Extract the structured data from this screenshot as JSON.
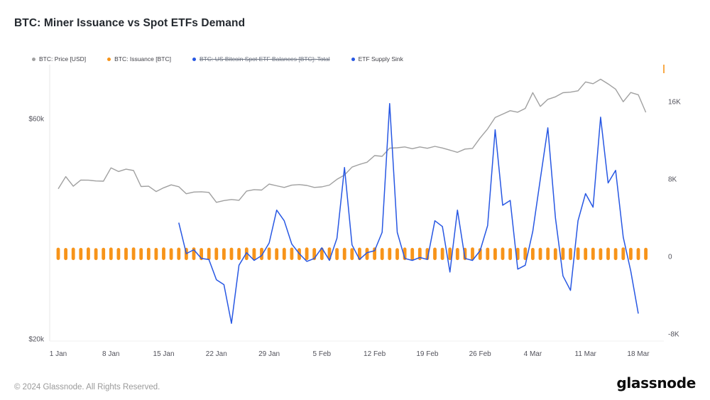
{
  "page": {
    "footer": {
      "copyright": "© 2024 Glassnode. All Rights Reserved.",
      "brand": "glassnode"
    }
  },
  "chart_data": {
    "type": "line",
    "title": "BTC: Miner Issuance vs Spot ETFs Demand",
    "legend_position": "top",
    "grid": false,
    "x_start_label": "1 Jan",
    "x_tick_labels": [
      "1 Jan",
      "8 Jan",
      "15 Jan",
      "22 Jan",
      "29 Jan",
      "5 Feb",
      "12 Feb",
      "19 Feb",
      "26 Feb",
      "4 Mar",
      "11 Mar",
      "18 Mar"
    ],
    "x_tick_indices": [
      0,
      7,
      14,
      21,
      28,
      35,
      42,
      49,
      56,
      63,
      70,
      77
    ],
    "left_axis": {
      "scale": "log",
      "range": [
        19790,
        77470
      ],
      "ticks": [
        {
          "label": "$60k",
          "value": 60000
        },
        {
          "label": "$20k",
          "value": 20000
        }
      ]
    },
    "right_axis": {
      "scale": "linear",
      "range": [
        -8730,
        19530
      ],
      "ticks": [
        {
          "label": "16K",
          "value": 16000
        },
        {
          "label": "8K",
          "value": 8000
        },
        {
          "label": "0",
          "value": 0
        },
        {
          "label": "-8K",
          "value": -8000
        }
      ]
    },
    "series": [
      {
        "name": "BTC: Price [USD]",
        "type": "line",
        "axis": "left",
        "color": "#a0a0a0",
        "values": [
          42300,
          44950,
          42850,
          44180,
          44150,
          43990,
          43940,
          46950,
          46110,
          46650,
          46340,
          42780,
          42850,
          41720,
          42510,
          43140,
          42740,
          41270,
          41620,
          41670,
          41550,
          39530,
          39880,
          40090,
          39940,
          41820,
          42120,
          42030,
          43300,
          42940,
          42580,
          43080,
          43190,
          43010,
          42580,
          42710,
          43090,
          44340,
          45290,
          47130,
          47770,
          48290,
          49920,
          49740,
          51800,
          51900,
          52120,
          51660,
          52120,
          51780,
          52270,
          51840,
          51300,
          50740,
          51570,
          51730,
          54500,
          57040,
          60370,
          61400,
          62440,
          61990,
          63170,
          68330,
          63800,
          66090,
          66930,
          68300,
          68500,
          68960,
          72080,
          71450,
          73080,
          71390,
          69500,
          65300,
          68390,
          67610,
          61940
        ]
      },
      {
        "name": "BTC: Issuance [BTC]",
        "type": "bar",
        "axis": "right",
        "color": "#f7941a",
        "values": [
          912,
          886,
          924,
          895,
          938,
          871,
          905,
          930,
          884,
          918,
          947,
          876,
          910,
          893,
          934,
          862,
          921,
          902,
          944,
          880,
          907,
          926,
          869,
          916,
          891,
          939,
          883,
          911,
          928,
          874,
          899,
          920,
          866,
          936,
          889,
          914,
          942,
          879,
          904,
          872,
          925,
          898,
          941,
          885,
          909,
          861,
          931,
          894,
          917,
          877,
          922,
          906,
          933,
          888,
          901,
          943,
          868,
          915,
          882,
          927,
          881,
          908,
          937,
          896,
          903,
          929,
          873,
          919,
          892,
          935,
          900,
          913,
          864,
          923,
          878,
          946,
          910,
          887,
          905
        ]
      },
      {
        "name": "BTC: US Bitcoin Spot ETF Balances [BTC]: Total",
        "type": "line",
        "axis": "right",
        "color": "#2757e3",
        "disabled": true,
        "values": null
      },
      {
        "name": "ETF Supply Sink",
        "type": "line",
        "axis": "right",
        "color": "#2757e3",
        "values": [
          null,
          null,
          null,
          null,
          null,
          null,
          null,
          null,
          null,
          null,
          null,
          null,
          null,
          null,
          null,
          null,
          3500,
          300,
          700,
          -200,
          -300,
          -2400,
          -2900,
          -6900,
          -900,
          400,
          -400,
          100,
          1400,
          4800,
          3700,
          1300,
          300,
          -500,
          -200,
          900,
          -400,
          1900,
          9200,
          1200,
          -300,
          400,
          600,
          2500,
          15800,
          2500,
          -200,
          -400,
          -100,
          -300,
          3700,
          3100,
          -1600,
          4800,
          -200,
          -400,
          600,
          3200,
          13100,
          5300,
          5800,
          -1300,
          -900,
          2600,
          8000,
          13300,
          4000,
          -2000,
          -3500,
          3700,
          6500,
          5100,
          14400,
          7600,
          8900,
          2000,
          -1500,
          -5900,
          null
        ]
      }
    ]
  }
}
